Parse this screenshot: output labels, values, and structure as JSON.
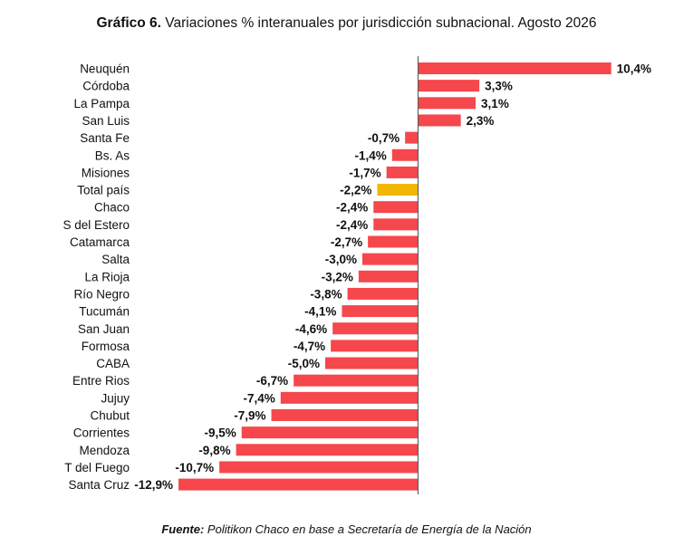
{
  "title": {
    "prefix": "Gráfico 6.",
    "text": "Variaciones % interanuales por jurisdicción subnacional. Agosto 2026"
  },
  "source": {
    "prefix": "Fuente:",
    "text": "Politikon Chaco en base a Secretaría de Energía de la Nación"
  },
  "colors": {
    "bar": "#f5474c",
    "highlight": "#f2b705",
    "axis": "#555555"
  },
  "chart_data": {
    "type": "bar",
    "orientation": "horizontal",
    "categories": [
      "Neuquén",
      "Córdoba",
      "La Pampa",
      "San Luis",
      "Santa Fe",
      "Bs. As",
      "Misiones",
      "Total país",
      "Chaco",
      "S del Estero",
      "Catamarca",
      "Salta",
      "La Rioja",
      "Río Negro",
      "Tucumán",
      "San Juan",
      "Formosa",
      "CABA",
      "Entre Rios",
      "Jujuy",
      "Chubut",
      "Corrientes",
      "Mendoza",
      "T del Fuego",
      "Santa Cruz"
    ],
    "values": [
      10.4,
      3.3,
      3.1,
      2.3,
      -0.7,
      -1.4,
      -1.7,
      -2.2,
      -2.4,
      -2.4,
      -2.7,
      -3.0,
      -3.2,
      -3.8,
      -4.1,
      -4.6,
      -4.7,
      -5.0,
      -6.7,
      -7.4,
      -7.9,
      -9.5,
      -9.8,
      -10.7,
      -12.9
    ],
    "labels": [
      "10,4%",
      "3,3%",
      "3,1%",
      "2,3%",
      "-0,7%",
      "-1,4%",
      "-1,7%",
      "-2,2%",
      "-2,4%",
      "-2,4%",
      "-2,7%",
      "-3,0%",
      "-3,2%",
      "-3,8%",
      "-4,1%",
      "-4,6%",
      "-4,7%",
      "-5,0%",
      "-6,7%",
      "-7,4%",
      "-7,9%",
      "-9,5%",
      "-9,8%",
      "-10,7%",
      "-12,9%"
    ],
    "highlight_category": "Total país",
    "grid": false,
    "legend": "none"
  }
}
